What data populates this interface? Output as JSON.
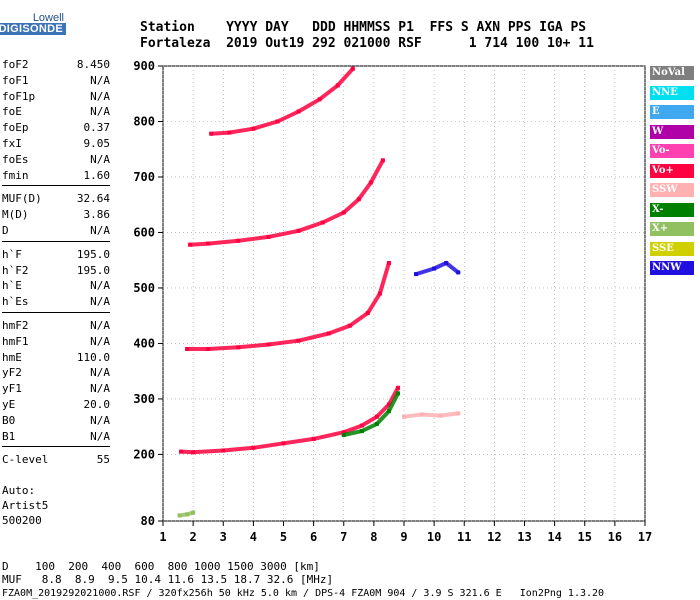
{
  "logo": {
    "brand": "Lowell",
    "product": "DIGISONDE"
  },
  "header": {
    "line1": "Station    YYYY DAY   DDD HHMMSS P1  FFS S AXN PPS IGA PS",
    "line2": "Fortaleza  2019 Out19 292 021000 RSF      1 714 100 10+ 11"
  },
  "params": [
    {
      "group": [
        {
          "k": "foF2",
          "v": "8.450"
        },
        {
          "k": "foF1",
          "v": "N/A"
        },
        {
          "k": "foF1p",
          "v": "N/A"
        },
        {
          "k": "foE",
          "v": "N/A"
        },
        {
          "k": "foEp",
          "v": "0.37"
        },
        {
          "k": "fxI",
          "v": "9.05"
        },
        {
          "k": "foEs",
          "v": "N/A"
        },
        {
          "k": "fmin",
          "v": "1.60"
        }
      ]
    },
    {
      "group": [
        {
          "k": "MUF(D)",
          "v": "32.64"
        },
        {
          "k": "M(D)",
          "v": "3.86"
        },
        {
          "k": "D",
          "v": "N/A"
        }
      ]
    },
    {
      "group": [
        {
          "k": "h`F",
          "v": "195.0"
        },
        {
          "k": "h`F2",
          "v": "195.0"
        },
        {
          "k": "h`E",
          "v": "N/A"
        },
        {
          "k": "h`Es",
          "v": "N/A"
        }
      ]
    },
    {
      "group": [
        {
          "k": "hmF2",
          "v": "N/A"
        },
        {
          "k": "hmF1",
          "v": "N/A"
        },
        {
          "k": "hmE",
          "v": "110.0"
        },
        {
          "k": "yF2",
          "v": "N/A"
        },
        {
          "k": "yF1",
          "v": "N/A"
        },
        {
          "k": "yE",
          "v": "20.0"
        },
        {
          "k": "B0",
          "v": "N/A"
        },
        {
          "k": "B1",
          "v": "N/A"
        }
      ]
    },
    {
      "group": [
        {
          "k": "C-level",
          "v": "55"
        }
      ]
    }
  ],
  "auto": [
    "Auto:",
    "Artist5",
    "500200"
  ],
  "legend": [
    {
      "label": "NoVal",
      "bg": "#7f7f7f",
      "fg": "#ffffff"
    },
    {
      "label": "NNE",
      "bg": "#00e0f0",
      "fg": "#ffffff"
    },
    {
      "label": "E",
      "bg": "#40a8f0",
      "fg": "#ffffff"
    },
    {
      "label": "W",
      "bg": "#b000a8",
      "fg": "#ffffff"
    },
    {
      "label": "Vo-",
      "bg": "#ff40b0",
      "fg": "#ffffff"
    },
    {
      "label": "Vo+",
      "bg": "#ff0040",
      "fg": "#ffffff"
    },
    {
      "label": "SSW",
      "bg": "#ffb0b0",
      "fg": "#ffffff"
    },
    {
      "label": "X-",
      "bg": "#008000",
      "fg": "#ffffff"
    },
    {
      "label": "X+",
      "bg": "#90c060",
      "fg": "#ffffff"
    },
    {
      "label": "SSE",
      "bg": "#d0d000",
      "fg": "#ffffff"
    },
    {
      "label": "NNW",
      "bg": "#2010e0",
      "fg": "#ffffff"
    }
  ],
  "bottom": {
    "d_line": "D    100  200  400  600  800 1000 1500 3000 [km]",
    "muf_line": "MUF   8.8  8.9  9.5 10.4 11.6 13.5 18.7 32.6 [MHz]",
    "footer": "FZA0M_2019292021000.RSF / 320fx256h 50 kHz 5.0 km / DPS-4 FZA0M 904 / 3.9 S 321.6 E   Ion2Png 1.3.20"
  },
  "chart_data": {
    "type": "scatter",
    "xlim": [
      1,
      17
    ],
    "ylim": [
      80,
      900
    ],
    "x_ticks": [
      "1",
      "2",
      "3",
      "4",
      "5",
      "6",
      "7",
      "8",
      "9",
      "10",
      "11",
      "12",
      "13",
      "14",
      "15",
      "16",
      "17"
    ],
    "y_ticks": [
      "80",
      "200",
      "300",
      "400",
      "500",
      "600",
      "700",
      "800",
      "900"
    ],
    "grid": true,
    "echo_traces": [
      {
        "name": "Vo+",
        "color": "#ff0040",
        "x": [
          1.6,
          2.0,
          3.0,
          4.0,
          5.0,
          6.0,
          7.0,
          7.6,
          8.1,
          8.5,
          8.8
        ],
        "y": [
          205,
          204,
          207,
          212,
          220,
          228,
          240,
          252,
          268,
          290,
          320
        ]
      },
      {
        "name": "Vo+",
        "color": "#ff0040",
        "x": [
          1.8,
          2.5,
          3.5,
          4.5,
          5.5,
          6.5,
          7.2,
          7.8,
          8.2,
          8.5
        ],
        "y": [
          390,
          390,
          393,
          398,
          405,
          418,
          432,
          455,
          490,
          545
        ]
      },
      {
        "name": "Vo+",
        "color": "#ff0040",
        "x": [
          1.9,
          2.5,
          3.5,
          4.5,
          5.5,
          6.3,
          7.0,
          7.5,
          7.9,
          8.3
        ],
        "y": [
          578,
          580,
          585,
          592,
          603,
          618,
          636,
          660,
          690,
          730
        ]
      },
      {
        "name": "Vo+",
        "color": "#ff0040",
        "x": [
          2.6,
          3.2,
          4.0,
          4.8,
          5.5,
          6.2,
          6.8,
          7.3
        ],
        "y": [
          778,
          780,
          787,
          800,
          818,
          840,
          865,
          895
        ]
      },
      {
        "name": "X-",
        "color": "#008000",
        "x": [
          7.0,
          7.6,
          8.1,
          8.5,
          8.8
        ],
        "y": [
          235,
          242,
          255,
          278,
          310
        ]
      },
      {
        "name": "SSW",
        "color": "#ffb0b0",
        "x": [
          9.0,
          9.6,
          10.2,
          10.8
        ],
        "y": [
          268,
          272,
          270,
          274
        ]
      },
      {
        "name": "NNW",
        "color": "#2010e0",
        "x": [
          9.4,
          10.0,
          10.4,
          10.8
        ],
        "y": [
          525,
          535,
          545,
          528
        ]
      },
      {
        "name": "X+",
        "color": "#90c060",
        "x": [
          1.55,
          1.8,
          2.0
        ],
        "y": [
          90,
          92,
          95
        ]
      }
    ]
  }
}
